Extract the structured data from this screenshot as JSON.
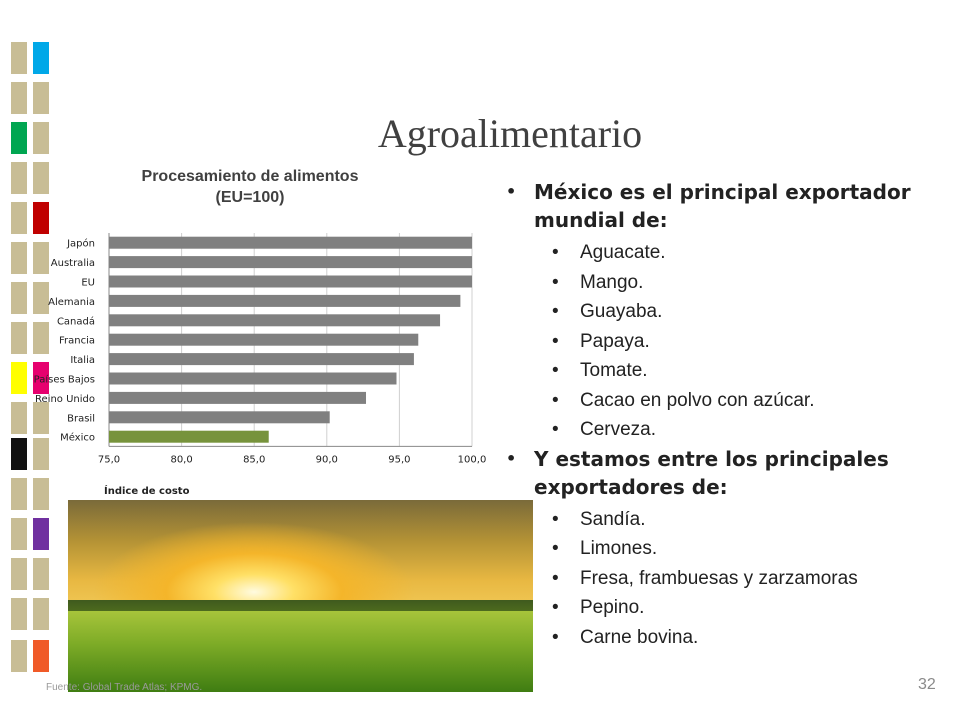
{
  "slide": {
    "title": "Agroalimentario",
    "page_number": "32",
    "source": "Fuente: Global Trade Atlas; KPMG."
  },
  "decor_colors": {
    "tan": "#c8bd95",
    "cyan": "#00a8e8",
    "green": "#00a651",
    "red": "#c00000",
    "yellow": "#ffff00",
    "magenta": "#e6006e",
    "black": "#111111",
    "purple": "#7030a0",
    "orange": "#f05a28"
  },
  "chart_data": {
    "type": "bar",
    "orientation": "horizontal",
    "title": "Procesamiento de alimentos",
    "subtitle": "(EU=100)",
    "xlabel": "Índice de costo",
    "ylabel": "",
    "xlim": [
      75,
      100
    ],
    "xticks": [
      "75,0",
      "80,0",
      "85,0",
      "90,0",
      "95,0",
      "100,0"
    ],
    "grid": true,
    "categories": [
      "Japón",
      "Australia",
      "EU",
      "Alemania",
      "Canadá",
      "Francia",
      "Italia",
      "Países Bajos",
      "Reino Unido",
      "Brasil",
      "México"
    ],
    "values": [
      100.0,
      100.0,
      100.0,
      99.2,
      97.8,
      96.3,
      96.0,
      94.8,
      92.7,
      90.2,
      86.0
    ],
    "colors": {
      "default": "#808080",
      "highlight": "#77933c"
    },
    "highlight_category": "México"
  },
  "bullets": [
    {
      "text": "México es el principal exportador mundial de:",
      "items": [
        "Aguacate.",
        "Mango.",
        "Guayaba.",
        "Papaya.",
        "Tomate.",
        "Cacao en polvo con azúcar.",
        "Cerveza."
      ]
    },
    {
      "text": "Y estamos entre los principales exportadores de:",
      "items": [
        "Sandía.",
        "Limones.",
        "Fresa, frambuesas y zarzamoras",
        "Pepino.",
        "Carne bovina."
      ]
    }
  ],
  "bullet_char": "•"
}
